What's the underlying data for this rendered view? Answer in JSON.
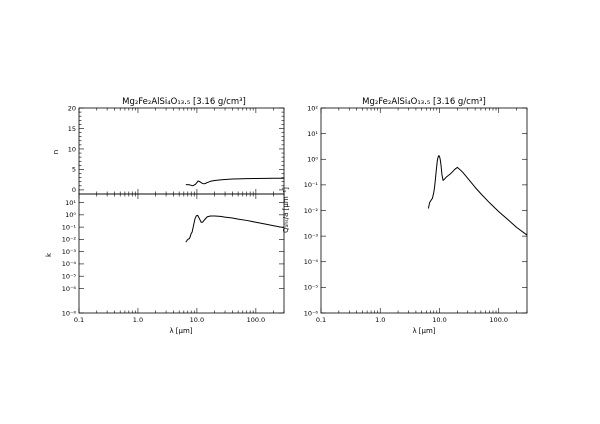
{
  "chart_data": [
    {
      "type": "line",
      "title": "Mg₂Fe₂AlSi₄O₁₃.₅ [3.16 g/cm³]",
      "xlabel": "λ [μm]",
      "xscale": "log",
      "xlim": [
        0.1,
        300
      ],
      "xticklabels": [
        "0.1",
        "1.0",
        "10.0",
        "100.0"
      ],
      "panels": [
        {
          "id": "n",
          "ylabel": "n",
          "yscale": "linear",
          "ylim": [
            -1,
            20
          ],
          "yticklabels": [
            "0",
            "5",
            "10",
            "15",
            "20"
          ],
          "series": [
            {
              "x": [
                6.5,
                7.5,
                8.5,
                9.5,
                10.5,
                11.5,
                12.5,
                13.5,
                15,
                17,
                20,
                25,
                30,
                40,
                50,
                70,
                100,
                150,
                200,
                300
              ],
              "y": [
                1.3,
                1.25,
                1.0,
                1.4,
                2.2,
                1.9,
                1.55,
                1.5,
                1.8,
                2.1,
                2.3,
                2.45,
                2.55,
                2.65,
                2.7,
                2.75,
                2.8,
                2.82,
                2.85,
                2.85
              ]
            }
          ]
        },
        {
          "id": "k",
          "ylabel": "k",
          "yscale": "log",
          "ylim": [
            1e-08,
            50
          ],
          "yticklabels": [
            "10⁻⁸",
            "10⁻⁶",
            "10⁻⁵",
            "10⁻⁴",
            "10⁻³",
            "10⁻²",
            "10⁻¹",
            "10⁰",
            "10¹"
          ],
          "series": [
            {
              "x": [
                6.5,
                7,
                7.5,
                8,
                8.3,
                8.8,
                9.3,
                9.8,
                10.3,
                11,
                11.8,
                12.5,
                13.5,
                15,
                17,
                20,
                25,
                30,
                40,
                50,
                70,
                100,
                150,
                200,
                300
              ],
              "y": [
                0.006,
                0.01,
                0.012,
                0.03,
                0.04,
                0.15,
                0.5,
                0.85,
                0.9,
                0.5,
                0.25,
                0.25,
                0.4,
                0.7,
                0.8,
                0.8,
                0.75,
                0.65,
                0.55,
                0.45,
                0.35,
                0.25,
                0.17,
                0.13,
                0.09
              ]
            }
          ]
        }
      ]
    },
    {
      "type": "line",
      "title": "Mg₂Fe₂AlSi₄O₁₃.₅ [3.16 g/cm³]",
      "xlabel": "λ [μm]",
      "ylabel": "Qₐₕₛ/a [μm⁻¹]",
      "xscale": "log",
      "yscale": "log",
      "xlim": [
        0.1,
        300
      ],
      "ylim": [
        1e-06,
        100
      ],
      "xticklabels": [
        "0.1",
        "1.0",
        "10.0",
        "100.0"
      ],
      "yticklabels": [
        "10⁻⁶",
        "10⁻⁵",
        "10⁻⁴",
        "10⁻³",
        "10⁻²",
        "10⁻¹",
        "10⁰",
        "10¹",
        "10²"
      ],
      "series": [
        {
          "x": [
            6.5,
            6.8,
            7.2,
            7.6,
            8,
            8.3,
            8.6,
            8.9,
            9.2,
            9.5,
            9.8,
            10.2,
            10.6,
            11,
            11.5,
            12.2,
            13,
            14,
            15,
            16.5,
            18,
            20,
            22,
            25,
            30,
            40,
            50,
            70,
            100,
            150,
            200,
            300
          ],
          "y": [
            0.012,
            0.02,
            0.025,
            0.03,
            0.05,
            0.09,
            0.2,
            0.45,
            0.9,
            1.25,
            1.4,
            1.1,
            0.6,
            0.25,
            0.15,
            0.17,
            0.2,
            0.23,
            0.26,
            0.32,
            0.4,
            0.48,
            0.4,
            0.3,
            0.18,
            0.08,
            0.045,
            0.02,
            0.009,
            0.004,
            0.0022,
            0.0011
          ]
        }
      ]
    }
  ]
}
